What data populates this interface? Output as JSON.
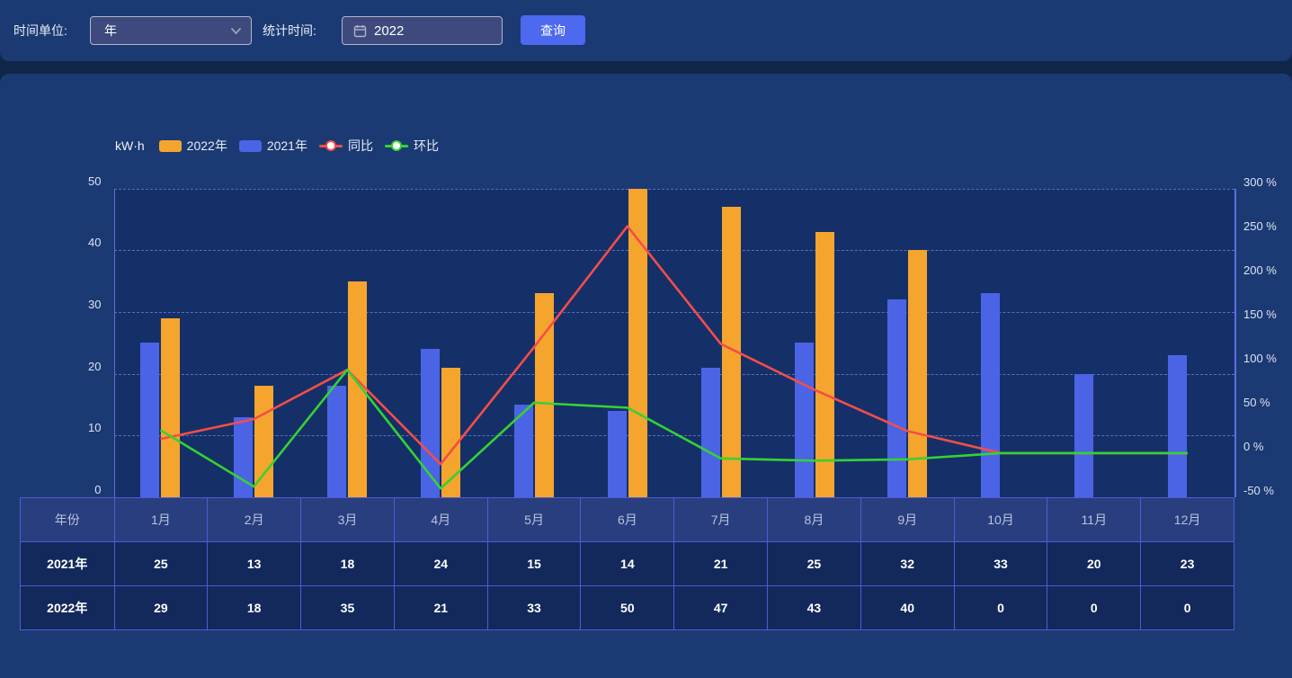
{
  "toolbar": {
    "time_unit_label": "时间单位:",
    "time_unit_value": "年",
    "stat_time_label": "统计时间:",
    "stat_time_value": "2022",
    "query_label": "查询"
  },
  "colors": {
    "accent_button": "#4c69f0",
    "bar_2022": "#f5a52d",
    "bar_2021": "#4b64e6",
    "line_yoy": "#f54d49",
    "line_mom": "#35d233"
  },
  "chart_data": {
    "type": "bar",
    "subtype": "bar+line dual-axis combo",
    "unit_label": "kW·h",
    "categories": [
      "1月",
      "2月",
      "3月",
      "4月",
      "5月",
      "6月",
      "7月",
      "8月",
      "9月",
      "10月",
      "11月",
      "12月"
    ],
    "series": [
      {
        "name": "2022年",
        "type": "bar",
        "axis": "left",
        "color": "#f5a52d",
        "values": [
          29,
          18,
          35,
          21,
          33,
          50,
          47,
          43,
          40,
          0,
          0,
          0
        ]
      },
      {
        "name": "2021年",
        "type": "bar",
        "axis": "left",
        "color": "#4b64e6",
        "values": [
          25,
          13,
          18,
          24,
          15,
          14,
          21,
          25,
          32,
          33,
          20,
          23
        ]
      },
      {
        "name": "同比",
        "type": "line",
        "axis": "right",
        "color": "#f54d49",
        "values": [
          16,
          38.5,
          94.4,
          -12.5,
          120,
          257.1,
          123.8,
          72,
          25,
          0,
          0,
          0
        ]
      },
      {
        "name": "环比",
        "type": "line",
        "axis": "right",
        "color": "#35d233",
        "values": [
          26.1,
          -37.9,
          94.4,
          -40,
          57.1,
          51.5,
          -6,
          -8.5,
          -7,
          0,
          0,
          0
        ]
      }
    ],
    "left_axis": {
      "min": 0,
      "max": 50,
      "step": 10,
      "labels": [
        "0",
        "10",
        "20",
        "30",
        "40",
        "50"
      ]
    },
    "right_axis": {
      "min": -50,
      "max": 300,
      "step": 50,
      "labels": [
        "-50 %",
        "0 %",
        "50 %",
        "100 %",
        "150 %",
        "200 %",
        "250 %",
        "300 %"
      ]
    },
    "legend_position": "top-left",
    "grid": "horizontal dashed"
  },
  "table": {
    "header": [
      "年份",
      "1月",
      "2月",
      "3月",
      "4月",
      "5月",
      "6月",
      "7月",
      "8月",
      "9月",
      "10月",
      "11月",
      "12月"
    ],
    "rows": [
      {
        "label": "2021年",
        "values": [
          "25",
          "13",
          "18",
          "24",
          "15",
          "14",
          "21",
          "25",
          "32",
          "33",
          "20",
          "23"
        ]
      },
      {
        "label": "2022年",
        "values": [
          "29",
          "18",
          "35",
          "21",
          "33",
          "50",
          "47",
          "43",
          "40",
          "0",
          "0",
          "0"
        ]
      }
    ]
  }
}
